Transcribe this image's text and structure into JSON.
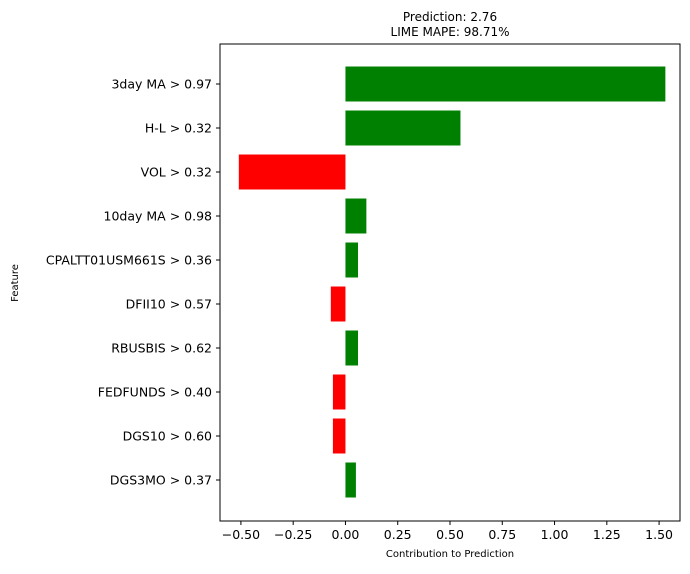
{
  "chart_data": {
    "type": "bar",
    "orientation": "horizontal",
    "title": "Prediction: 2.76",
    "subtitle": "LIME MAPE: 98.71%",
    "xlabel": "Contribution to Prediction",
    "ylabel": "Feature",
    "xlim": [
      -0.6,
      1.6
    ],
    "xticks": [
      -0.5,
      -0.25,
      0.0,
      0.25,
      0.5,
      0.75,
      1.0,
      1.25,
      1.5
    ],
    "xtick_labels": [
      "−0.50",
      "−0.25",
      "0.00",
      "0.25",
      "0.50",
      "0.75",
      "1.00",
      "1.25",
      "1.50"
    ],
    "grid": false,
    "categories": [
      "3day MA > 0.97",
      "H-L > 0.32",
      "VOL > 0.32",
      "10day MA > 0.98",
      "CPALTT01USM661S > 0.36",
      "DFII10 > 0.57",
      "RBUSBIS > 0.62",
      "FEDFUNDS > 0.40",
      "DGS10 > 0.60",
      "DGS3MO > 0.37"
    ],
    "values": [
      1.53,
      0.55,
      -0.51,
      0.1,
      0.06,
      -0.07,
      0.06,
      -0.06,
      -0.06,
      0.05
    ],
    "colors": {
      "positive": "#008000",
      "negative": "#ff0000"
    }
  }
}
